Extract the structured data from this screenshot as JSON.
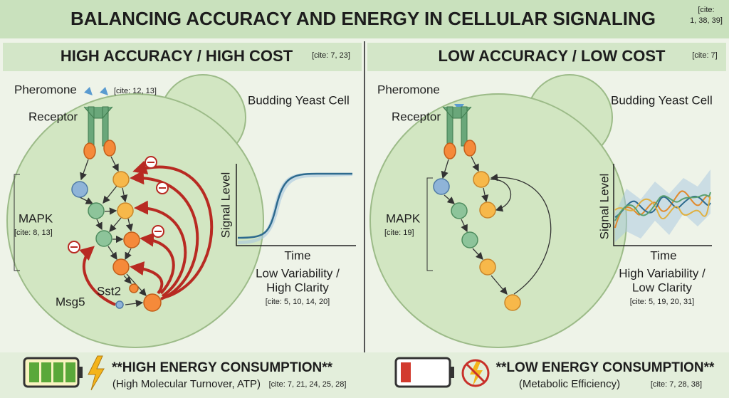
{
  "header": {
    "title": "BALANCING ACCURACY AND ENERGY IN CELLULAR SIGNALING",
    "cite_lines": [
      "[cite:",
      "1, 38, 39]"
    ]
  },
  "panels": [
    {
      "heading": "HIGH ACCURACY / HIGH COST",
      "heading_cite": "[cite: 7, 23]",
      "pheromone": "Pheromone",
      "pheromone_cite": "[cite: 12, 13]",
      "receptor": "Receptor",
      "cell": "Budding Yeast Cell",
      "mapk": "MAPK",
      "mapk_cite": "[cite: 8, 13]",
      "msg5": "Msg5",
      "sst2": "Sst2",
      "y_label": "Signal Level",
      "x_label": "Time",
      "caption_lines": [
        "Low Variability /",
        "High Clarity"
      ],
      "caption_cite": "[cite: 5, 10, 14, 20]",
      "energy": "**HIGH ENERGY CONSUMPTION**",
      "energy_note": "(High Molecular Turnover, ATP)",
      "energy_cite": "[cite: 7, 21, 24, 25, 28]"
    },
    {
      "heading": "LOW ACCURACY / LOW COST",
      "heading_cite": "[cite: 7]",
      "pheromone": "Pheromone",
      "receptor": "Receptor",
      "cell": "Budding Yeast Cell",
      "mapk": "MAPK",
      "mapk_cite": "[cite: 19]",
      "y_label": "Signal Level",
      "x_label": "Time",
      "caption_lines": [
        "High Variability /",
        "Low Clarity"
      ],
      "caption_cite": "[cite: 5, 19, 20, 31]",
      "energy": "**LOW ENERGY CONSUMPTION**",
      "energy_note": "(Metabolic Efficiency)",
      "energy_cite": "[cite: 7, 28, 38]"
    }
  ]
}
